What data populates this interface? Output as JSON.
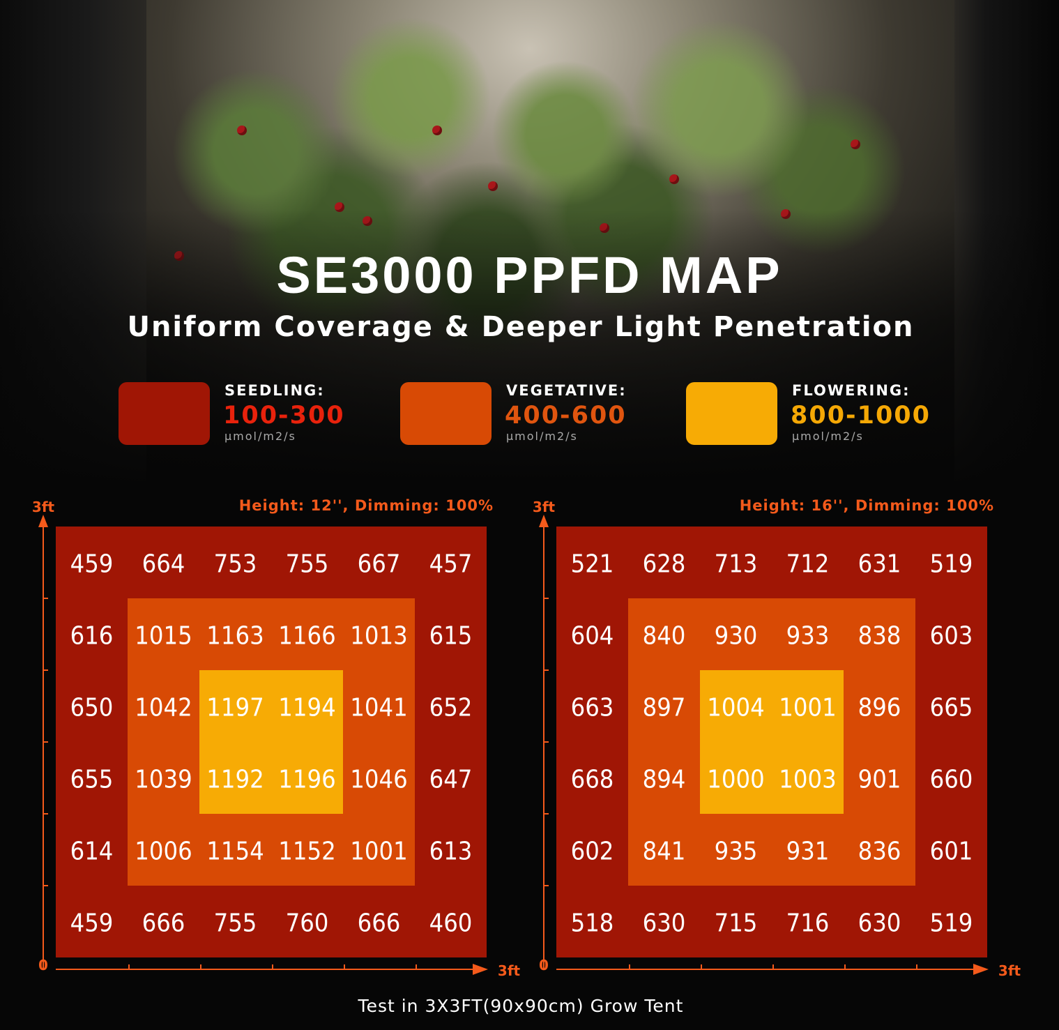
{
  "title": "SE3000 PPFD MAP",
  "subtitle": "Uniform Coverage & Deeper Light Penetration",
  "legend": [
    {
      "stage": "SEEDLING:",
      "range": "100-300",
      "unit": "μmol/m2/s",
      "color": "#a01605",
      "text_color": "#e8220c"
    },
    {
      "stage": "VEGETATIVE:",
      "range": "400-600",
      "unit": "μmol/m2/s",
      "color": "#d84a05",
      "text_color": "#e0550f"
    },
    {
      "stage": "FLOWERING:",
      "range": "800-1000",
      "unit": "μmol/m2/s",
      "color": "#f7ab05",
      "text_color": "#f5a805"
    }
  ],
  "footer": "Test in 3X3FT(90x90cm) Grow Tent",
  "chart_data": [
    {
      "type": "heatmap",
      "title": "Height: 12'', Dimming: 100%",
      "y_top_label": "3ft",
      "origin_label": "0",
      "x_end_label": "3ft",
      "grid": [
        [
          459,
          664,
          753,
          755,
          667,
          457
        ],
        [
          616,
          1015,
          1163,
          1166,
          1013,
          615
        ],
        [
          650,
          1042,
          1197,
          1194,
          1041,
          652
        ],
        [
          655,
          1039,
          1192,
          1196,
          1046,
          647
        ],
        [
          614,
          1006,
          1154,
          1152,
          1001,
          613
        ],
        [
          459,
          666,
          755,
          760,
          666,
          460
        ]
      ]
    },
    {
      "type": "heatmap",
      "title": "Height: 16'', Dimming: 100%",
      "y_top_label": "3ft",
      "origin_label": "0",
      "x_end_label": "3ft",
      "grid": [
        [
          521,
          628,
          713,
          712,
          631,
          519
        ],
        [
          604,
          840,
          930,
          933,
          838,
          603
        ],
        [
          663,
          897,
          1004,
          1001,
          896,
          665
        ],
        [
          668,
          894,
          1000,
          1003,
          901,
          660
        ],
        [
          602,
          841,
          935,
          931,
          836,
          601
        ],
        [
          518,
          630,
          715,
          716,
          630,
          519
        ]
      ]
    }
  ],
  "colors": {
    "outer_zone": "#a01605",
    "middle_zone": "#d84a05",
    "center_zone": "#f7ab05",
    "axis": "#f45a1b",
    "value_text": "#ffffff"
  }
}
